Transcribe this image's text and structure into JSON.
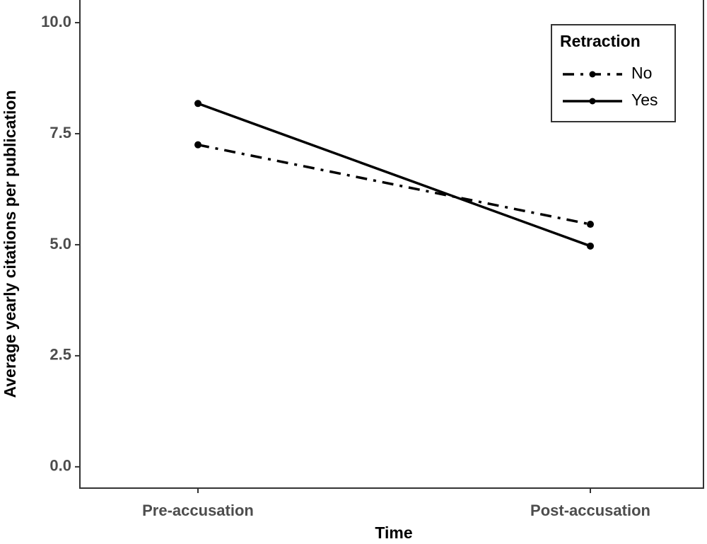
{
  "chart_data": {
    "type": "line",
    "xlabel": "Time",
    "ylabel": "Average yearly citations per publication",
    "categories": [
      "Pre-accusation",
      "Post-accusation"
    ],
    "series": [
      {
        "name": "No",
        "color": "#000000",
        "linestyle": "dotdash",
        "values": [
          7.25,
          5.46
        ]
      },
      {
        "name": "Yes",
        "color": "#000000",
        "linestyle": "solid",
        "values": [
          8.18,
          4.97
        ]
      }
    ],
    "legend_title": "Retraction",
    "legend": "top-right",
    "ylim": [
      -0.48,
      10.51
    ],
    "yticks": [
      {
        "value": 0,
        "label": "0.0"
      },
      {
        "value": 2.5,
        "label": "2.5"
      },
      {
        "value": 5,
        "label": "5.0"
      },
      {
        "value": 7.5,
        "label": "7.5"
      },
      {
        "value": 10,
        "label": "10.0"
      }
    ]
  }
}
